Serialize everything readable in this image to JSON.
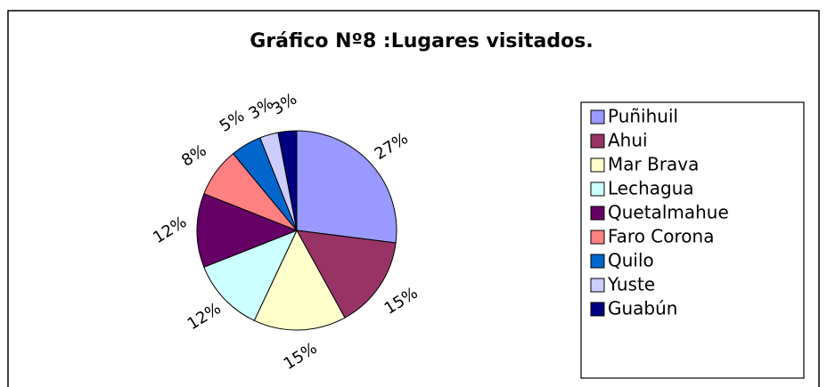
{
  "chart_data": {
    "type": "pie",
    "title": "Gráfico Nº8 :Lugares visitados.",
    "categories": [
      "Puñihuil",
      "Ahui",
      "Mar Brava",
      "Lechagua",
      "Quetalmahue",
      "Faro Corona",
      "Quilo",
      "Yuste",
      "Guabún"
    ],
    "values": [
      27,
      15,
      15,
      12,
      12,
      8,
      5,
      3,
      3
    ],
    "value_labels": [
      "27%",
      "15%",
      "15%",
      "12%",
      "12%",
      "8%",
      "5%",
      "3%",
      "3%"
    ],
    "colors": [
      "#9999ff",
      "#993366",
      "#ffffcc",
      "#ccffff",
      "#660066",
      "#ff8080",
      "#0066cc",
      "#ccccff",
      "#000080"
    ],
    "legend": "right"
  }
}
